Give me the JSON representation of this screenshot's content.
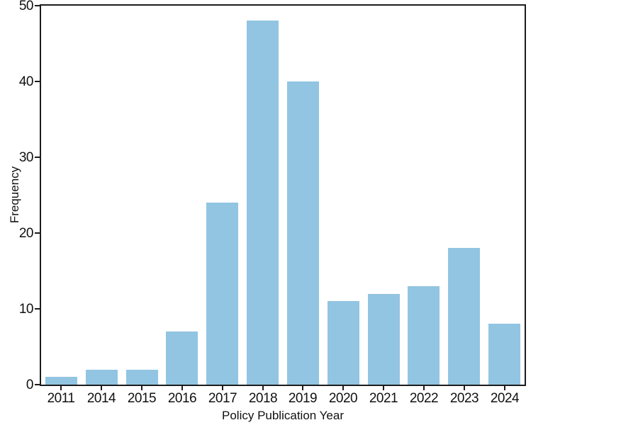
{
  "figure": {
    "background_color": "#ffffff",
    "axis_color": "#1c1c1c",
    "text_color": "#111111"
  },
  "chart_data": {
    "type": "bar",
    "title": "",
    "categories": [
      "2011",
      "2014",
      "2015",
      "2016",
      "2017",
      "2018",
      "2019",
      "2020",
      "2021",
      "2022",
      "2023",
      "2024"
    ],
    "values": [
      1,
      2,
      2,
      7,
      24,
      48,
      40,
      11,
      12,
      13,
      18,
      8
    ],
    "xlabel": "Policy Publication Year",
    "ylabel": "Frequency",
    "ylim": [
      0,
      50
    ],
    "yticks": [
      0,
      10,
      20,
      30,
      40,
      50
    ],
    "grid": false,
    "legend": null,
    "bar_color": "#92c5e2",
    "bar_relative_width": 0.8
  }
}
